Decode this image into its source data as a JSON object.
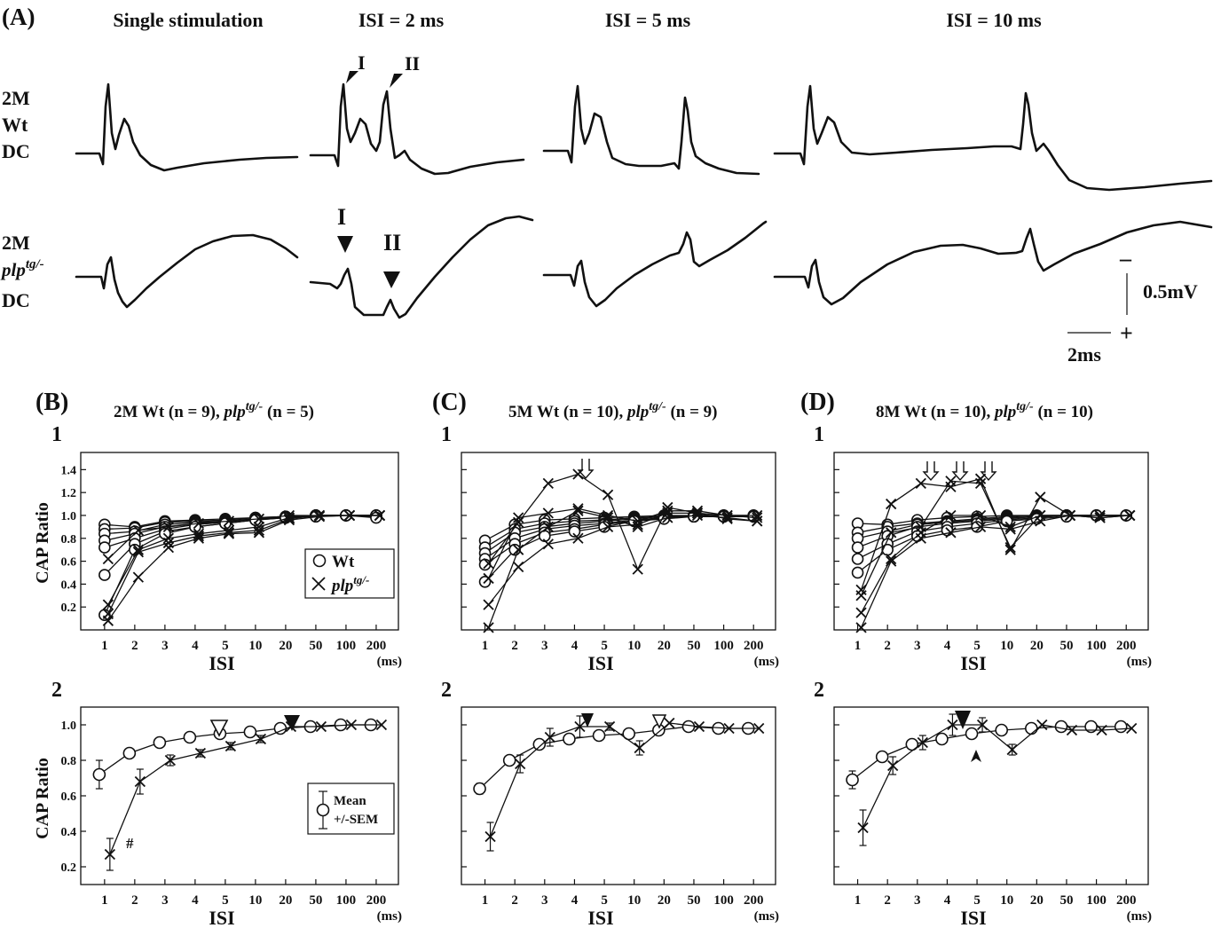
{
  "panel_a": {
    "label": "(A)",
    "col_titles": [
      "Single stimulation",
      "ISI = 2 ms",
      "ISI = 5 ms",
      "ISI = 10 ms"
    ],
    "row1_label": [
      "2M",
      "Wt",
      "DC"
    ],
    "row2_label": [
      "2M",
      "plp",
      "tg/-",
      "DC"
    ],
    "peak_labels": {
      "top_i": "I",
      "top_ii": "II",
      "bottom_i": "I",
      "bottom_ii": "II"
    },
    "scalebar": {
      "voltage": "0.5mV",
      "time": "2ms",
      "minus": "–",
      "plus": "+"
    }
  },
  "panels": {
    "B": {
      "label": "(B)",
      "title_a": "2M Wt (n = 9), ",
      "title_plp": "plp",
      "title_sup": "tg/-",
      "title_b": " (n = 5)"
    },
    "C": {
      "label": "(C)",
      "title_a": "5M Wt (n = 10), ",
      "title_plp": "plp",
      "title_sup": "tg/-",
      "title_b": " (n = 9)"
    },
    "D": {
      "label": "(D)",
      "title_a": "8M Wt (n = 10), ",
      "title_plp": "plp",
      "title_sup": "tg/-",
      "title_b": " (n = 10)"
    }
  },
  "sub_labels": {
    "one": "1",
    "two": "2"
  },
  "axes": {
    "ylabel": "CAP Ratio",
    "xlabel": "ISI",
    "xunit": "(ms)",
    "xticks": [
      "1",
      "2",
      "3",
      "4",
      "5",
      "10",
      "20",
      "50",
      "100",
      "200"
    ],
    "yticks_top": [
      "0.2",
      "0.4",
      "0.6",
      "0.8",
      "1.0",
      "1.2",
      "1.4"
    ],
    "yticks_bottom": [
      "0.2",
      "0.4",
      "0.6",
      "0.8",
      "1.0"
    ]
  },
  "legend1": {
    "wt": "Wt",
    "plp": "plp",
    "plp_sup": "tg/-"
  },
  "legend2": {
    "mean": "Mean",
    "sem": "+/-SEM"
  },
  "hash_mark": "#",
  "chart_data": [
    {
      "type": "line",
      "panel": "B2",
      "xlabel": "ISI",
      "ylabel": "CAP Ratio",
      "categories": [
        "1",
        "2",
        "3",
        "4",
        "5",
        "10",
        "20",
        "50",
        "100",
        "200"
      ],
      "ylim": [
        0.1,
        1.1
      ],
      "series": [
        {
          "name": "Wt",
          "values": [
            0.72,
            0.84,
            0.9,
            0.93,
            0.95,
            0.96,
            0.98,
            0.99,
            1.0,
            1.0
          ],
          "sem": [
            0.08,
            0.02,
            0.02,
            0.015,
            0.01,
            0.01,
            0.01,
            0.01,
            0.01,
            0.01
          ]
        },
        {
          "name": "plp tg/-",
          "values": [
            0.27,
            0.68,
            0.8,
            0.84,
            0.88,
            0.92,
            0.99,
            0.99,
            1.0,
            1.0
          ],
          "sem": [
            0.09,
            0.07,
            0.03,
            0.02,
            0.02,
            0.02,
            0.01,
            0.01,
            0.01,
            0.01
          ]
        }
      ]
    },
    {
      "type": "line",
      "panel": "C2",
      "xlabel": "ISI",
      "ylabel": "CAP Ratio",
      "categories": [
        "1",
        "2",
        "3",
        "4",
        "5",
        "10",
        "20",
        "50",
        "100",
        "200"
      ],
      "ylim": [
        0.1,
        1.1
      ],
      "series": [
        {
          "name": "Wt",
          "values": [
            0.64,
            0.8,
            0.89,
            0.92,
            0.94,
            0.95,
            0.97,
            0.99,
            0.98,
            0.98
          ],
          "sem": [
            0.03,
            0.02,
            0.02,
            0.02,
            0.01,
            0.01,
            0.01,
            0.01,
            0.01,
            0.01
          ]
        },
        {
          "name": "plp tg/-",
          "values": [
            0.37,
            0.78,
            0.93,
            0.99,
            0.99,
            0.87,
            1.01,
            0.99,
            0.98,
            0.98
          ],
          "sem": [
            0.08,
            0.05,
            0.05,
            0.06,
            0.02,
            0.04,
            0.01,
            0.01,
            0.01,
            0.01
          ]
        }
      ]
    },
    {
      "type": "line",
      "panel": "D2",
      "xlabel": "ISI",
      "ylabel": "CAP Ratio",
      "categories": [
        "1",
        "2",
        "3",
        "4",
        "5",
        "10",
        "20",
        "50",
        "100",
        "200"
      ],
      "ylim": [
        0.1,
        1.1
      ],
      "series": [
        {
          "name": "Wt",
          "values": [
            0.69,
            0.82,
            0.89,
            0.92,
            0.95,
            0.97,
            0.98,
            0.99,
            0.99,
            0.99
          ],
          "sem": [
            0.05,
            0.02,
            0.02,
            0.02,
            0.02,
            0.01,
            0.01,
            0.01,
            0.01,
            0.01
          ]
        },
        {
          "name": "plp tg/-",
          "values": [
            0.42,
            0.77,
            0.9,
            1.0,
            1.0,
            0.86,
            1.0,
            0.97,
            0.97,
            0.98
          ],
          "sem": [
            0.1,
            0.05,
            0.04,
            0.06,
            0.04,
            0.03,
            0.01,
            0.01,
            0.01,
            0.01
          ]
        }
      ]
    }
  ]
}
